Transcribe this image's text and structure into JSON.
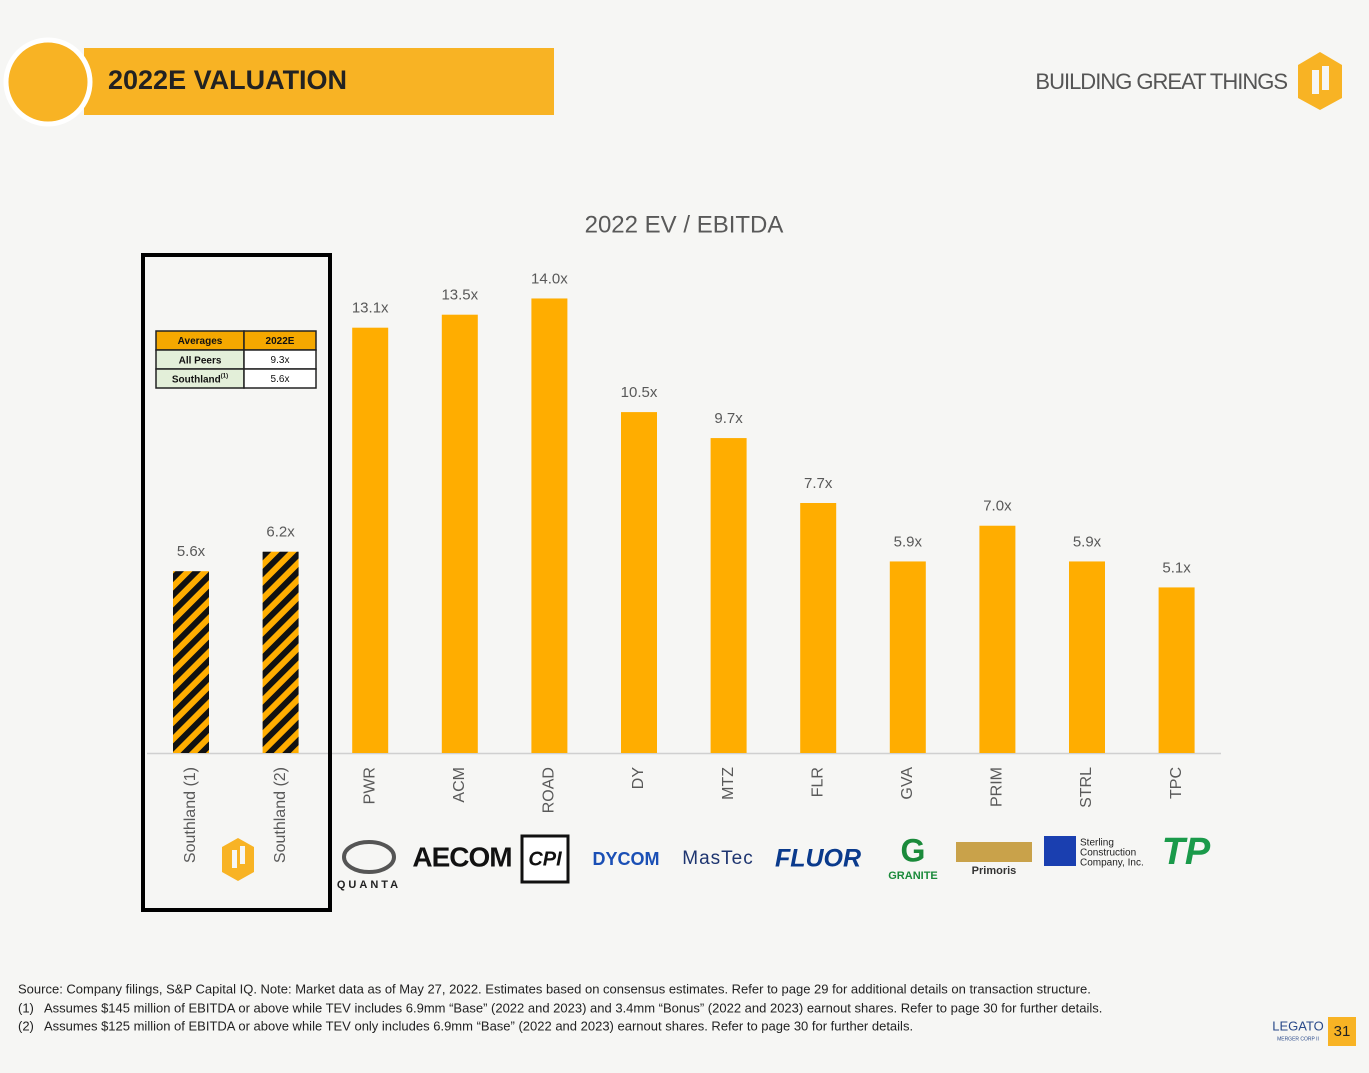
{
  "header": {
    "title": "2022E VALUATION",
    "tagline": "BUILDING GREAT THINGS"
  },
  "chart_data": {
    "type": "bar",
    "title": "2022 EV / EBITDA",
    "categories": [
      "Southland (1)",
      "Southland (2)",
      "PWR",
      "ACM",
      "ROAD",
      "DY",
      "MTZ",
      "FLR",
      "GVA",
      "PRIM",
      "STRL",
      "TPC"
    ],
    "values": [
      5.6,
      6.2,
      13.1,
      13.5,
      14.0,
      10.5,
      9.7,
      7.7,
      5.9,
      7.0,
      5.9,
      5.1
    ],
    "value_labels": [
      "5.6x",
      "6.2x",
      "13.1x",
      "13.5x",
      "14.0x",
      "10.5x",
      "9.7x",
      "7.7x",
      "5.9x",
      "7.0x",
      "5.9x",
      "5.1x"
    ],
    "hatched": [
      true,
      true,
      false,
      false,
      false,
      false,
      false,
      false,
      false,
      false,
      false,
      false
    ],
    "color": "#ffad00",
    "ylim": [
      0,
      15
    ]
  },
  "table": {
    "header": [
      "Averages",
      "2022E"
    ],
    "rows": [
      [
        {
          "label": "All Peers",
          "note": ""
        },
        "9.3x"
      ],
      [
        {
          "label": "Southland",
          "note": "(1)"
        },
        "5.6x"
      ]
    ]
  },
  "logos": [
    "QUANTA",
    "AECOM",
    "CPI",
    "DYCOM",
    "MasTec",
    "FLUOR",
    "GRANITE",
    "Primoris",
    "Sterling",
    "Construction",
    "Company, Inc.",
    "TP"
  ],
  "footnotes": {
    "source": "Source: Company filings, S&P Capital IQ. Note: Market data as of May 27, 2022. Estimates based on consensus estimates. Refer to page 29 for additional details on transaction structure.",
    "notes": [
      {
        "marker": "(1)",
        "text": "Assumes  $145 million of EBITDA or above while TEV includes 6.9mm “Base” (2022 and 2023) and 3.4mm “Bonus” (2022 and 2023) earnout shares. Refer to page 30 for further details."
      },
      {
        "marker": "(2)",
        "text": "Assumes  $125 million of EBITDA or above while TEV only includes 6.9mm “Base” (2022 and 2023) earnout shares. Refer to page 30 for further details."
      }
    ]
  },
  "footer": {
    "brand": "LEGATO",
    "brand_sub": "MERGER CORP II",
    "page": "31"
  }
}
